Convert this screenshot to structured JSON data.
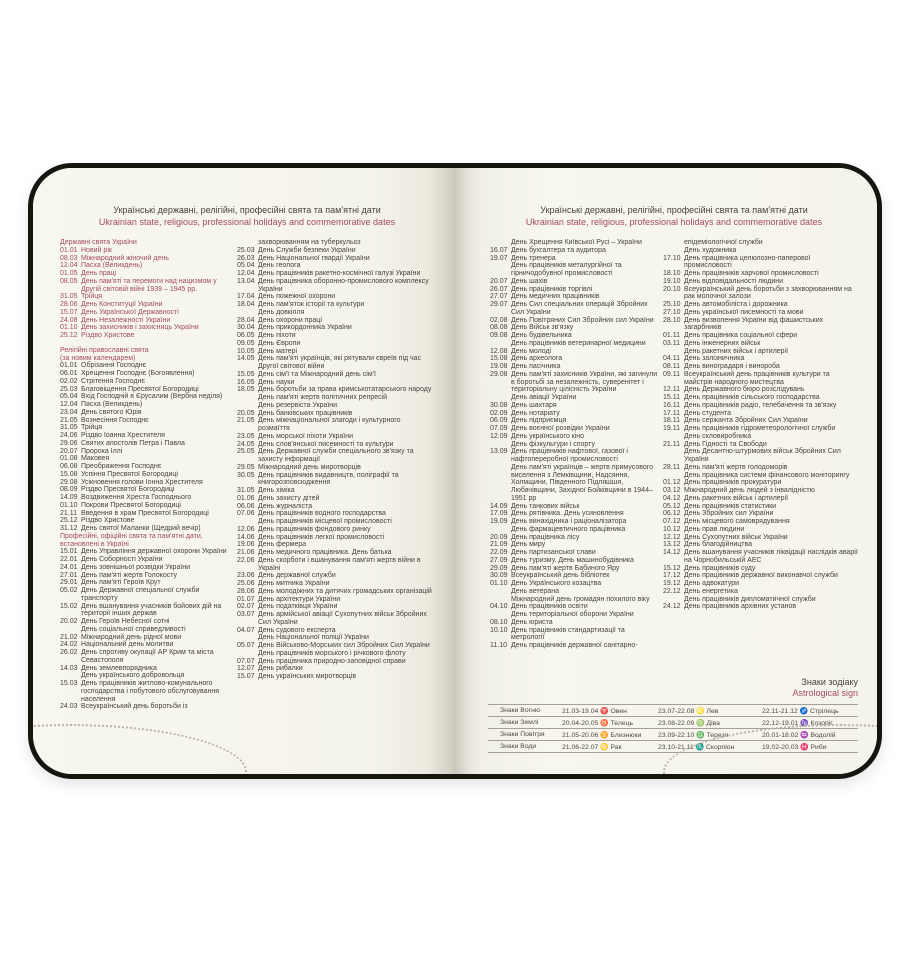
{
  "colors": {
    "paper": "#f5f4ec",
    "ink": "#45433c",
    "red": "#a34b5b",
    "cover": "#17150f",
    "table_line": "#a3a197",
    "dots": "#b8b4a4"
  },
  "left_page": {
    "title": "Українські державні, релігійні, професійні свята та пам'ятні дати",
    "subtitle": "Ukrainian state, religious, professional holidays and commemorative dates",
    "col1": [
      {
        "h": "Державні свята України"
      },
      {
        "d": "01.01",
        "t": "Новий рік",
        "r": 1
      },
      {
        "d": "08.03",
        "t": "Міжнародний жіночий день",
        "r": 1
      },
      {
        "d": "12.04",
        "t": "Пасха (Великдень)",
        "r": 1
      },
      {
        "d": "01.05",
        "t": "День праці",
        "r": 1
      },
      {
        "d": "08.05",
        "t": "День пам'яті та перемоги над нацизмом у Другій світовій війні 1939 – 1945 рр.",
        "r": 1
      },
      {
        "d": "31.05",
        "t": "Трійця",
        "r": 1
      },
      {
        "d": "28.06",
        "t": "День Конституції України",
        "r": 1
      },
      {
        "d": "15.07",
        "t": "День Української Державності",
        "r": 1
      },
      {
        "d": "24.08",
        "t": "День Незалежності України",
        "r": 1
      },
      {
        "d": "01.10",
        "t": "День захисників і захисниць України",
        "r": 1
      },
      {
        "d": "25.12",
        "t": "Різдво Христове",
        "r": 1
      },
      {
        "g": 1
      },
      {
        "h": "Релігійні православні свята"
      },
      {
        "h": "(за новим календарем)"
      },
      {
        "d": "01.01",
        "t": "Обрізання Господнє"
      },
      {
        "d": "06.01",
        "t": "Хрещення Господнє (Богоявлення)"
      },
      {
        "d": "02.02",
        "t": "Стрітення Господнє"
      },
      {
        "d": "25.03",
        "t": "Благовіщення Пресвятої Богородиці"
      },
      {
        "d": "05.04",
        "t": "Вхід Господній в Єрусалим (Вербна неділя)"
      },
      {
        "d": "12.04",
        "t": "Пасха (Великдень)"
      },
      {
        "d": "23.04",
        "t": "День святого Юрія"
      },
      {
        "d": "21.05",
        "t": "Вознесіння Господнє"
      },
      {
        "d": "31.05",
        "t": "Трійця"
      },
      {
        "d": "24.06",
        "t": "Різдво Іоанна Хрестителя"
      },
      {
        "d": "29.06",
        "t": "Святих апостолів Петра і Павла"
      },
      {
        "d": "20.07",
        "t": "Пророка Іллі"
      },
      {
        "d": "01.08",
        "t": "Маковея"
      },
      {
        "d": "06.08",
        "t": "Преображення Господнє"
      },
      {
        "d": "15.08",
        "t": "Успіння Пресвятої Богородиці"
      },
      {
        "d": "29.08",
        "t": "Усікновення голови Іонна Хрестителя"
      },
      {
        "d": "08.09",
        "t": "Різдво Пресвятої Богородиці"
      },
      {
        "d": "14.09",
        "t": "Воздвиження Хреста Господнього"
      },
      {
        "d": "01.10",
        "t": "Покрови Пресвятої Богородиці"
      },
      {
        "d": "21.11",
        "t": "Введення в храм Пресвятої Богородиці"
      },
      {
        "d": "25.12",
        "t": "Різдво Христове"
      },
      {
        "d": "31.12",
        "t": "День святої Маланки (Щедрий вечір)"
      },
      {
        "h": "Професійні, офіційні свята та пам'ятні дати,"
      },
      {
        "h": "встановлені в Україні"
      },
      {
        "d": "15.01",
        "t": "День Управління державної охорони України"
      },
      {
        "d": "22.01",
        "t": "День Соборності України"
      },
      {
        "d": "24.01",
        "t": "День зовнішньої розвідки України"
      },
      {
        "d": "27.01",
        "t": "День пам'яті жертв Голокосту"
      },
      {
        "d": "29.01",
        "t": "День пам'яті Героїв Крут"
      },
      {
        "d": "05.02",
        "t": "День Державної спеціальної служби транспорту"
      },
      {
        "d": "15.02",
        "t": "День вшанування учасників бойових дій на території інших держав"
      },
      {
        "d": "20.02",
        "t": "День Героїв Небесної сотні"
      },
      {
        "t": "День соціальної справедливості"
      },
      {
        "d": "21.02",
        "t": "Міжнародний день рідної мови"
      },
      {
        "d": "24.02",
        "t": "Національний день молитви"
      },
      {
        "d": "26.02",
        "t": "День спротиву окупації АР Крим та міста Севастополя"
      },
      {
        "d": "14.03",
        "t": "День землевпорядника"
      },
      {
        "t": "День українського добровольця"
      },
      {
        "d": "15.03",
        "t": "День працівників житлово-комунального господарства і побутового обслуговування населення"
      },
      {
        "d": "24.03",
        "t": "Всеукраїнський день боротьби із"
      }
    ],
    "col2": [
      {
        "t": "захворюванням на туберкульоз"
      },
      {
        "d": "25.03",
        "t": "День Служби безпеки України"
      },
      {
        "d": "26.03",
        "t": "День Національної гвардії України"
      },
      {
        "d": "05.04",
        "t": "День геолога"
      },
      {
        "d": "12.04",
        "t": "День працівників ракетно-космічної галузі України"
      },
      {
        "d": "13.04",
        "t": "День працівника оборонно-промислового комплексу України"
      },
      {
        "d": "17.04",
        "t": "День пожежної охорони"
      },
      {
        "d": "18.04",
        "t": "День пам'яток історії та культури"
      },
      {
        "t": "День довкілля"
      },
      {
        "d": "28.04",
        "t": "День охорони праці"
      },
      {
        "d": "30.04",
        "t": "День прикордонника України"
      },
      {
        "d": "06.05",
        "t": "День піхоти"
      },
      {
        "d": "09.05",
        "t": "День Європи"
      },
      {
        "d": "10.05",
        "t": "День матері"
      },
      {
        "d": "14.05",
        "t": "День пам'яті українців, які рятували євреїв під час Другої світової війни"
      },
      {
        "d": "15.05",
        "t": "День сім'ї та Міжнародний день сім'ї"
      },
      {
        "d": "16.05",
        "t": "День науки"
      },
      {
        "d": "18.05",
        "t": "День боротьби за права кримськотатарського народу"
      },
      {
        "t": "День пам'яті жертв політичних репресій"
      },
      {
        "t": "День резервіста України"
      },
      {
        "d": "20.05",
        "t": "День банківських працівників"
      },
      {
        "d": "21.05",
        "t": "День міжнаціональної злагоди і культурного розмаїття"
      },
      {
        "d": "23.05",
        "t": "День морської піхоти України"
      },
      {
        "d": "24.05",
        "t": "День слов'янської писемності та культури"
      },
      {
        "d": "25.05",
        "t": "День Державної служби спеціального зв'язку та захисту інформації"
      },
      {
        "d": "29.05",
        "t": "Міжнародний день миротворців"
      },
      {
        "d": "30.05",
        "t": "День працівників видавництв, поліграфії та книгорозповсюдження"
      },
      {
        "d": "31.05",
        "t": "День хіміка"
      },
      {
        "d": "01.06",
        "t": "День захисту дітей"
      },
      {
        "d": "06.06",
        "t": "День журналіста"
      },
      {
        "d": "07.06",
        "t": "День працівників водного господарства"
      },
      {
        "t": "День працівників місцевої промисловості"
      },
      {
        "d": "12.06",
        "t": "День працівників фондового ринку"
      },
      {
        "d": "14.06",
        "t": "День працівників легкої промисловості"
      },
      {
        "d": "19.06",
        "t": "День фермера"
      },
      {
        "d": "21.06",
        "t": "День медичного працівника. День батька"
      },
      {
        "d": "22.06",
        "t": "День скорботи і вшанування пам'яті жертв війни в Україні"
      },
      {
        "d": "23.06",
        "t": "День державної служби"
      },
      {
        "d": "25.06",
        "t": "День митника України"
      },
      {
        "d": "28.06",
        "t": "День молодіжних та дитячих громадських організацій"
      },
      {
        "d": "01.07",
        "t": "День архітектури України"
      },
      {
        "d": "02.07",
        "t": "День податківця України"
      },
      {
        "d": "03.07",
        "t": "День армійської авіації Сухопутних військ Збройних Сил України"
      },
      {
        "d": "04.07",
        "t": "День судового експерта"
      },
      {
        "t": "День Національної поліції України"
      },
      {
        "d": "05.07",
        "t": "День Військово-Морських сил Збройних Сил України"
      },
      {
        "t": "День працівників морського і річкового флоту"
      },
      {
        "d": "07.07",
        "t": "День працівника природно-заповідної справи"
      },
      {
        "d": "12.07",
        "t": "День рибалки"
      },
      {
        "d": "15.07",
        "t": "День українських миротворців"
      }
    ]
  },
  "right_page": {
    "title": "Українські державні, релігійні, професійні свята та пам'ятні дати",
    "subtitle": "Ukrainian state, religious, professional holidays and commemorative dates",
    "col1": [
      {
        "t": "День Хрещення Київської Русі – України"
      },
      {
        "d": "16.07",
        "t": "День бухгалтера та аудитора"
      },
      {
        "d": "19.07",
        "t": "День тренера"
      },
      {
        "t": "День працівників металургійної та гірничодобувної промисловості"
      },
      {
        "d": "20.07",
        "t": "День шахів"
      },
      {
        "d": "26.07",
        "t": "День працівників торгівлі"
      },
      {
        "d": "27.07",
        "t": "День медичних працівників"
      },
      {
        "d": "29.07",
        "t": "День Сил спеціальних операцій Збройних Сил України"
      },
      {
        "d": "02.08",
        "t": "День Повітряних Сил Збройних сил України"
      },
      {
        "d": "08.08",
        "t": "День Військ зв'язку"
      },
      {
        "d": "09.08",
        "t": "День будівельника"
      },
      {
        "t": "День працівників ветеринарної медицини"
      },
      {
        "d": "12.08",
        "t": "День молоді"
      },
      {
        "d": "15.08",
        "t": "День археолога"
      },
      {
        "d": "19.08",
        "t": "День пасічника"
      },
      {
        "d": "29.08",
        "t": "День пам'яті захисників України, які загинули в боротьбі за незалежність, суверенітет і територіальну цілісність України"
      },
      {
        "t": "День авіації України"
      },
      {
        "d": "30.08",
        "t": "День шахтаря"
      },
      {
        "d": "02.09",
        "t": "День нотаріату"
      },
      {
        "d": "06.09",
        "t": "День підприємця"
      },
      {
        "d": "07.09",
        "t": "День воєнної розвідки України"
      },
      {
        "d": "12.09",
        "t": "День українського кіно"
      },
      {
        "t": "День фізкультури і спорту"
      },
      {
        "d": "13.09",
        "t": "День працівників нафтової, газової і нафтопереробної промисловості"
      },
      {
        "t": "День пам'яті українців – жертв примусового виселення з Лемківщини, Надсяння, Холмщини, Південного Підляшшя, Любачівщини, Західної Бойківщини в 1944–1951 рр"
      },
      {
        "d": "14.09",
        "t": "День танкових військ"
      },
      {
        "d": "17.09",
        "t": "День рятівника. День усиновлення"
      },
      {
        "d": "19.09",
        "t": "День винахідника і раціоналізатора"
      },
      {
        "t": "День фармацевтичного працівника"
      },
      {
        "d": "20.09",
        "t": "День працівника лісу"
      },
      {
        "d": "21.09",
        "t": "День миру"
      },
      {
        "d": "22.09",
        "t": "День партизанської слави"
      },
      {
        "d": "27.09",
        "t": "День туризму. День машинобудівника"
      },
      {
        "d": "29.09",
        "t": "День пам'яті жертв Бабиного Яру"
      },
      {
        "d": "30.09",
        "t": "Всеукраїнський день бібліотек"
      },
      {
        "d": "01.10",
        "t": "День Українського козацтва"
      },
      {
        "t": "День ветерана"
      },
      {
        "t": "Міжнародний день громадян похилого віку"
      },
      {
        "d": "04.10",
        "t": "День працівників освіти"
      },
      {
        "t": "День територіальної оборони України"
      },
      {
        "d": "08.10",
        "t": "День юриста"
      },
      {
        "d": "10.10",
        "t": "День працівників стандартизації та метрології"
      },
      {
        "d": "11.10",
        "t": "День працівників державної санітарно-"
      }
    ],
    "col2": [
      {
        "t": "епідеміологічної служби"
      },
      {
        "t": "День художника"
      },
      {
        "d": "17.10",
        "t": "День працівника целюлозно-паперової промисловості"
      },
      {
        "d": "18.10",
        "t": "День працівників харчової промисловості"
      },
      {
        "d": "19.10",
        "t": "День відповідальності людини"
      },
      {
        "d": "20.10",
        "t": "Всеукраїнський день боротьби з захворюванням на рак молочної залози"
      },
      {
        "d": "25.10",
        "t": "День автомобіліста і дорожника"
      },
      {
        "d": "27.10",
        "t": "День української писемності та мови"
      },
      {
        "d": "28.10",
        "t": "День визволення України від фашистських загарбників"
      },
      {
        "d": "01.11",
        "t": "День працівника соціальної сфери"
      },
      {
        "d": "03.11",
        "t": "День інженерних військ"
      },
      {
        "t": "День ракетних військ і артилерії"
      },
      {
        "d": "04.11",
        "t": "День залізничника"
      },
      {
        "d": "08.11",
        "t": "День виноградаря і винороба"
      },
      {
        "d": "09.11",
        "t": "Всеукраїнський день працівників культури та майстрів народного мистецтва"
      },
      {
        "d": "12.11",
        "t": "День Державного бюро розслідувань"
      },
      {
        "d": "15.11",
        "t": "День працівників сільського господарства"
      },
      {
        "d": "16.11",
        "t": "День працівників радіо, телебачення та зв'язку"
      },
      {
        "d": "17.11",
        "t": "День студента"
      },
      {
        "d": "18.11",
        "t": "День сержанта Збройних Сил України"
      },
      {
        "d": "19.11",
        "t": "День працівників гідрометеорологічної служби"
      },
      {
        "t": "День скловиробника"
      },
      {
        "d": "21.11",
        "t": "День Гідності та Свободи"
      },
      {
        "t": "День Десантно-штурмових військ Збройних Сил України"
      },
      {
        "d": "28.11",
        "t": "День пам'яті жертв голодоморів"
      },
      {
        "t": "День працівника системи фінансового моніторингу"
      },
      {
        "d": "01.12",
        "t": "День працівників прокуратури"
      },
      {
        "d": "03.12",
        "t": "Міжнародний день людей з інвалідністю"
      },
      {
        "d": "04.12",
        "t": "День ракетних військ і артилерії"
      },
      {
        "d": "05.12",
        "t": "День працівників статистики"
      },
      {
        "d": "06.12",
        "t": "День Збройних сил України"
      },
      {
        "d": "07.12",
        "t": "День місцевого самоврядування"
      },
      {
        "d": "10.12",
        "t": "День прав людини"
      },
      {
        "d": "12.12",
        "t": "День Сухопутних військ України"
      },
      {
        "d": "13.12",
        "t": "День благодійництва"
      },
      {
        "d": "14.12",
        "t": "День вшанування учасників ліквідації наслідків аварії на Чорнобильській АЕС"
      },
      {
        "d": "15.12",
        "t": "День працівників суду"
      },
      {
        "d": "17.12",
        "t": "День працівників державної виконавчої служби"
      },
      {
        "d": "19.12",
        "t": "День адвокатури"
      },
      {
        "d": "22.12",
        "t": "День енергетика"
      },
      {
        "t": "День працівників дипломатичної служби"
      },
      {
        "d": "24.12",
        "t": "День працівників архівних установ"
      }
    ],
    "zodiac": {
      "title_uk": "Знаки зодіаку",
      "title_en": "Astrological sign",
      "rows": [
        [
          "Знаки Вогню",
          "21.03-19.04 ♈ Овен",
          "23.07-22.08 ♌ Лев",
          "22.11-21.12 ♐ Стрілець"
        ],
        [
          "Знаки Землі",
          "20.04-20.05 ♉ Телець",
          "23.08-22.09 ♍ Діва",
          "22.12-19.01 ♑ Козоріг"
        ],
        [
          "Знаки Повітря",
          "21.05-20.06 ♊ Близнюки",
          "23.09-22.10 ♎ Терези",
          "20.01-18.02 ♒ Водолій"
        ],
        [
          "Знаки Води",
          "21.06-22.07 ♋ Рак",
          "23.10-21.11 ♏ Скорпіон",
          "19.02-20.03 ♓ Риби"
        ]
      ]
    }
  }
}
